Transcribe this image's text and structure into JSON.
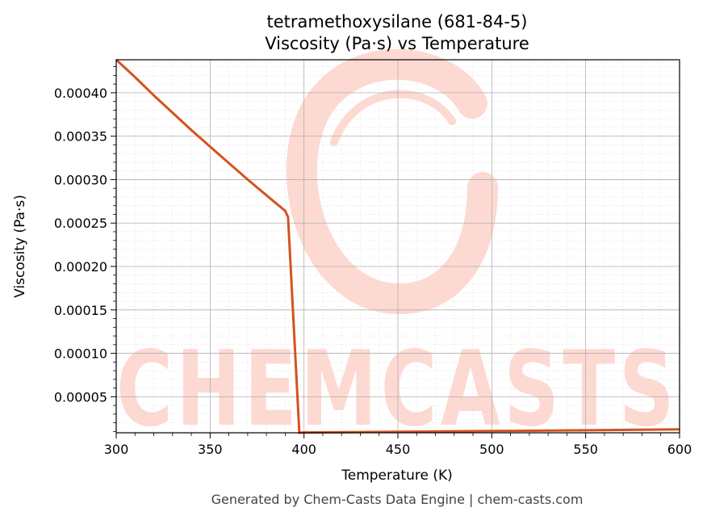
{
  "colors": {
    "line": "#d4531f",
    "watermark": "#fdd9d2",
    "grid_major": "#b0b0b0",
    "grid_minor": "#e4e4e4"
  },
  "watermark": {
    "text": "CHEMCASTS"
  },
  "footer": "Generated by Chem-Casts Data Engine | chem-casts.com",
  "chart_data": {
    "type": "line",
    "title": "tetramethoxysilane (681-84-5)",
    "subtitle": "Viscosity (Pa·s) vs Temperature",
    "xlabel": "Temperature (K)",
    "ylabel": "Viscosity (Pa·s)",
    "xlim": [
      300,
      600
    ],
    "ylim": [
      8.5e-06,
      0.000438
    ],
    "xticks": [
      300,
      350,
      400,
      450,
      500,
      550,
      600
    ],
    "xtick_labels": [
      "300",
      "350",
      "400",
      "450",
      "500",
      "550",
      "600"
    ],
    "yticks": [
      5e-05,
      0.0001,
      0.00015,
      0.0002,
      0.00025,
      0.0003,
      0.00035,
      0.0004
    ],
    "ytick_labels": [
      "0.00005",
      "0.00010",
      "0.00015",
      "0.00020",
      "0.00025",
      "0.00030",
      "0.00035",
      "0.00040"
    ],
    "grid": true,
    "minor_grid": true,
    "legend": "none",
    "series": [
      {
        "x": [
          300,
          310,
          320,
          330,
          340,
          350,
          360,
          370,
          380,
          390,
          391.5,
          397.5,
          400,
          450,
          500,
          550,
          600
        ],
        "y": [
          0.000438,
          0.000418,
          0.000397,
          0.000377,
          0.000357,
          0.000338,
          0.000319,
          0.0003,
          0.000282,
          0.000264,
          0.000257,
          8.5e-06,
          8.9e-06,
          9.7e-06,
          1.05e-05,
          1.14e-05,
          1.24e-05
        ]
      }
    ]
  }
}
